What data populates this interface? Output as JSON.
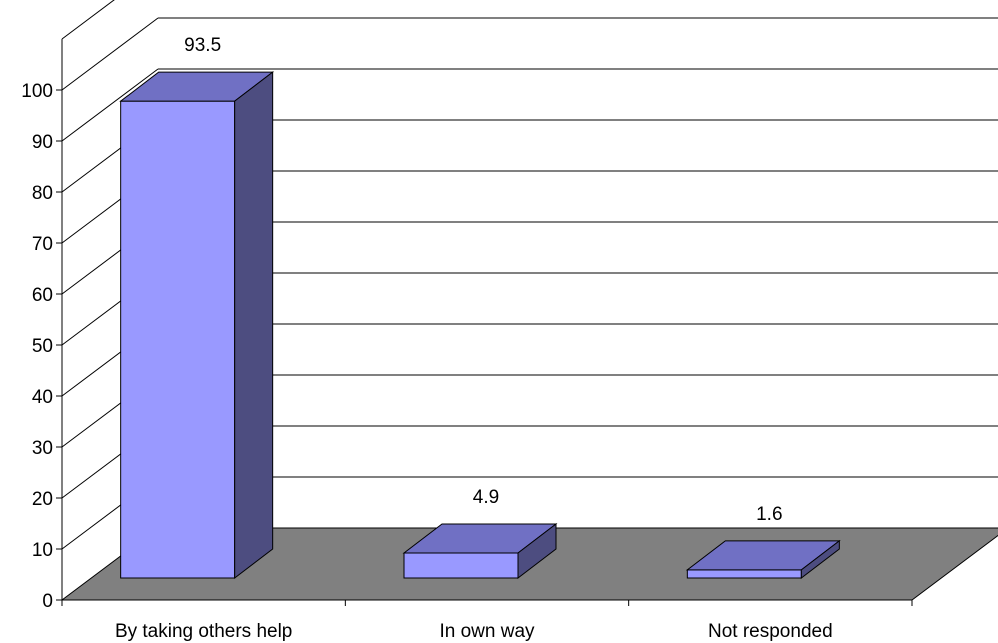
{
  "chart_data": {
    "type": "bar",
    "categories": [
      "By taking others help",
      "In own way",
      "Not responded"
    ],
    "values": [
      93.5,
      4.9,
      1.6
    ],
    "data_labels": [
      "93.5",
      "4.9",
      "1.6"
    ],
    "yticks": [
      "0",
      "10",
      "20",
      "30",
      "40",
      "50",
      "60",
      "70",
      "80",
      "90",
      "100"
    ],
    "ylim": [
      0,
      110
    ],
    "grid": true,
    "three_d": true,
    "colors": {
      "bar_front": "#9999ff",
      "bar_top": "#7070c4",
      "bar_side": "#4d4d80",
      "floor": "#808080",
      "line": "#000000"
    }
  }
}
